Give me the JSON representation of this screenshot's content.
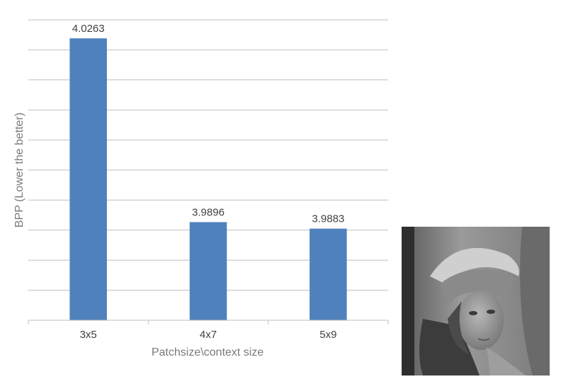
{
  "chart_data": {
    "type": "bar",
    "title": "",
    "xlabel": "Patchsize\\context size",
    "ylabel": "BPP (Lower the better)",
    "categories": [
      "3x5",
      "4x7",
      "5x9"
    ],
    "values": [
      4.0263,
      3.9896,
      3.9883
    ],
    "data_labels": [
      "4.0263",
      "3.9896",
      "3.9883"
    ],
    "ylim": [
      3.97,
      4.03
    ],
    "y_tick_labels_shown": false,
    "grid": true,
    "legend": "none",
    "bar_color": "#4f81bd",
    "gridline_color": "#bfbfbf"
  },
  "photo": {
    "subject": "grayscale-portrait"
  }
}
